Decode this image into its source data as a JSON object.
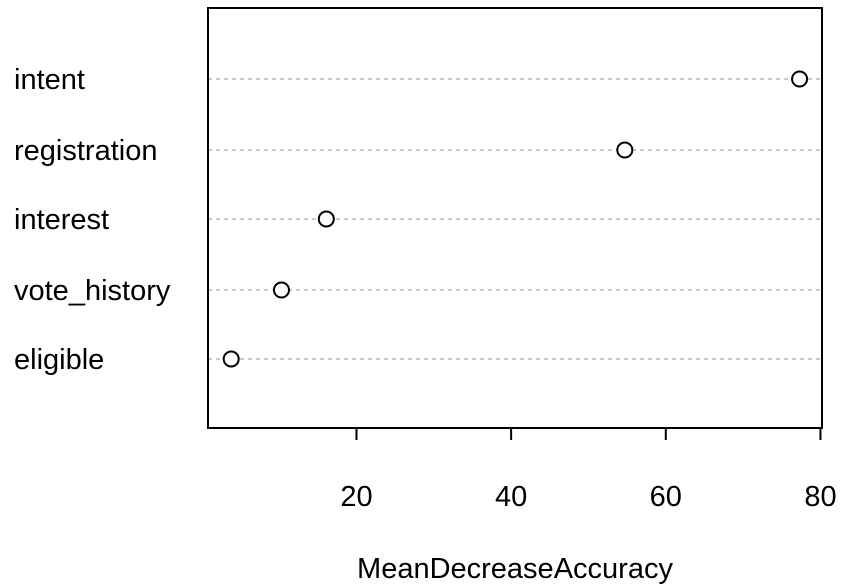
{
  "chart_data": {
    "type": "scatter",
    "variant": "dotchart",
    "categories": [
      "intent",
      "registration",
      "interest",
      "vote_history",
      "eligible"
    ],
    "values": [
      77.3,
      54.7,
      16.1,
      10.3,
      3.8
    ],
    "xlabel": "MeanDecreaseAccuracy",
    "xticks": [
      20,
      40,
      60,
      80
    ],
    "xlim": [
      0.8,
      80.2
    ],
    "grid": "horizontal dashed per category",
    "marker": "open-circle"
  }
}
